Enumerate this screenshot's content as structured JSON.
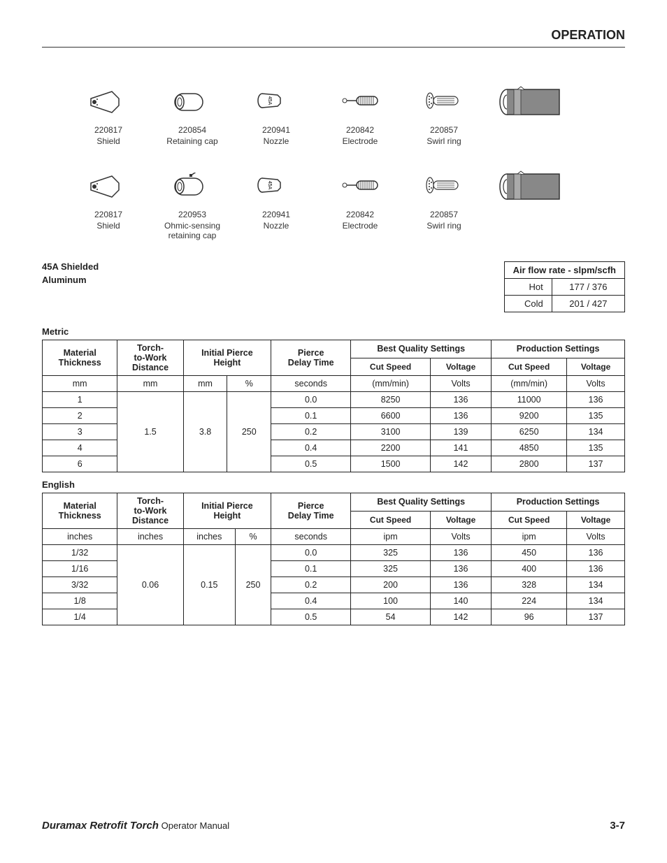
{
  "header": {
    "title": "OPERATION"
  },
  "parts_rows": [
    [
      {
        "num": "220817",
        "label": "Shield",
        "icon": "shield"
      },
      {
        "num": "220854",
        "label": "Retaining cap",
        "icon": "retcap"
      },
      {
        "num": "220941",
        "label": "Nozzle",
        "icon": "nozzle"
      },
      {
        "num": "220842",
        "label": "Electrode",
        "icon": "electrode"
      },
      {
        "num": "220857",
        "label": "Swirl ring",
        "icon": "swirl"
      },
      {
        "num": "",
        "label": "",
        "icon": "torch"
      }
    ],
    [
      {
        "num": "220817",
        "label": "Shield",
        "icon": "shield"
      },
      {
        "num": "220953",
        "label": "Ohmic-sensing\nretaining cap",
        "icon": "retcap_ohmic"
      },
      {
        "num": "220941",
        "label": "Nozzle",
        "icon": "nozzle"
      },
      {
        "num": "220842",
        "label": "Electrode",
        "icon": "electrode"
      },
      {
        "num": "220857",
        "label": "Swirl ring",
        "icon": "swirl"
      },
      {
        "num": "",
        "label": "",
        "icon": "torch"
      }
    ]
  ],
  "spec": {
    "line1": "45A Shielded",
    "line2": "Aluminum"
  },
  "airflow": {
    "title": "Air flow rate - slpm/scfh",
    "rows": [
      {
        "label": "Hot",
        "value": "177 / 376"
      },
      {
        "label": "Cold",
        "value": "201 / 427"
      }
    ]
  },
  "metric": {
    "label": "Metric",
    "headers": {
      "mat": "Material\nThickness",
      "ttw": "Torch-\nto-Work\nDistance",
      "iph": "Initial Pierce\nHeight",
      "pdt": "Pierce\nDelay Time",
      "bqs": "Best Quality Settings",
      "ps": "Production Settings",
      "cs": "Cut Speed",
      "v": "Voltage"
    },
    "units": [
      "mm",
      "mm",
      "mm",
      "%",
      "seconds",
      "(mm/min)",
      "Volts",
      "(mm/min)",
      "Volts"
    ],
    "ttw": "1.5",
    "iph_mm": "3.8",
    "iph_pct": "250",
    "rows": [
      {
        "t": "1",
        "d": "0.0",
        "bcs": "8250",
        "bv": "136",
        "pcs": "11000",
        "pv": "136"
      },
      {
        "t": "2",
        "d": "0.1",
        "bcs": "6600",
        "bv": "136",
        "pcs": "9200",
        "pv": "135"
      },
      {
        "t": "3",
        "d": "0.2",
        "bcs": "3100",
        "bv": "139",
        "pcs": "6250",
        "pv": "134"
      },
      {
        "t": "4",
        "d": "0.4",
        "bcs": "2200",
        "bv": "141",
        "pcs": "4850",
        "pv": "135"
      },
      {
        "t": "6",
        "d": "0.5",
        "bcs": "1500",
        "bv": "142",
        "pcs": "2800",
        "pv": "137"
      }
    ]
  },
  "english": {
    "label": "English",
    "units": [
      "inches",
      "inches",
      "inches",
      "%",
      "seconds",
      "ipm",
      "Volts",
      "ipm",
      "Volts"
    ],
    "ttw": "0.06",
    "iph_in": "0.15",
    "iph_pct": "250",
    "rows": [
      {
        "t": "1/32",
        "d": "0.0",
        "bcs": "325",
        "bv": "136",
        "pcs": "450",
        "pv": "136"
      },
      {
        "t": "1/16",
        "d": "0.1",
        "bcs": "325",
        "bv": "136",
        "pcs": "400",
        "pv": "136"
      },
      {
        "t": "3/32",
        "d": "0.2",
        "bcs": "200",
        "bv": "136",
        "pcs": "328",
        "pv": "134"
      },
      {
        "t": "1/8",
        "d": "0.4",
        "bcs": "100",
        "bv": "140",
        "pcs": "224",
        "pv": "134"
      },
      {
        "t": "1/4",
        "d": "0.5",
        "bcs": "54",
        "bv": "142",
        "pcs": "96",
        "pv": "137"
      }
    ]
  },
  "footer": {
    "title": "Duramax Retrofit Torch",
    "sub": "Operator Manual",
    "page": "3-7"
  },
  "colors": {
    "text": "#222222",
    "border": "#222222",
    "bg": "#ffffff"
  }
}
